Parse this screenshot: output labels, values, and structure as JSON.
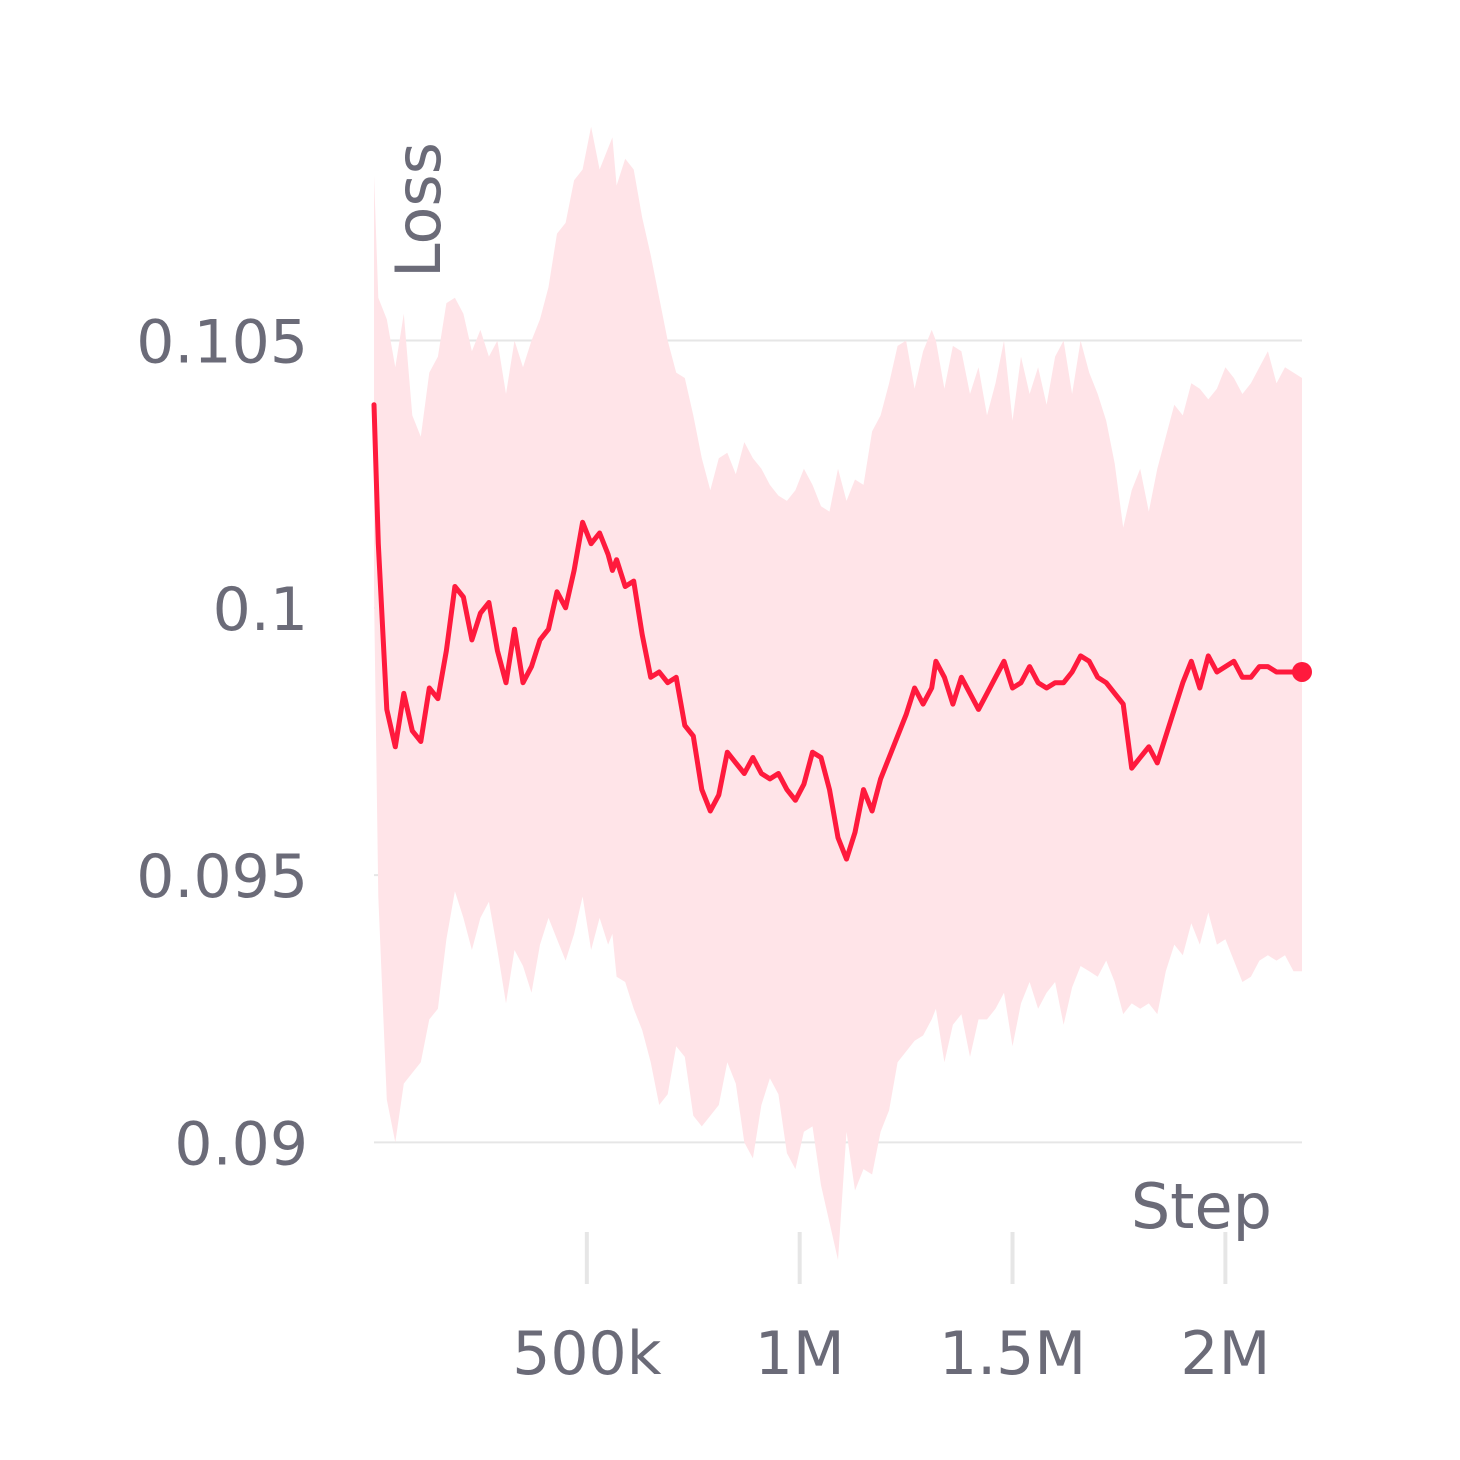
{
  "chart_data": {
    "type": "line",
    "xlabel": "Step",
    "ylabel": "Loss",
    "x_ticks": [
      {
        "value": 500000,
        "label": "500k"
      },
      {
        "value": 1000000,
        "label": "1M"
      },
      {
        "value": 1500000,
        "label": "1.5M"
      },
      {
        "value": 2000000,
        "label": "2M"
      }
    ],
    "y_ticks": [
      {
        "value": 0.09,
        "label": "0.09"
      },
      {
        "value": 0.095,
        "label": "0.095"
      },
      {
        "value": 0.1,
        "label": "0.1"
      },
      {
        "value": 0.105,
        "label": "0.105"
      }
    ],
    "xlim": [
      0,
      2180000
    ],
    "ylim": [
      0.0878,
      0.1095
    ],
    "grid": "horizontal",
    "colors": {
      "line": "#ff1a3d",
      "band": "#ffe4e8",
      "grid": "#e6e6e6",
      "text": "#6b6b78"
    },
    "series": [
      {
        "x": [
          0,
          10000,
          30000,
          50000,
          70000,
          90000,
          110000,
          130000,
          150000,
          170000,
          190000,
          210000,
          230000,
          250000,
          270000,
          290000,
          310000,
          330000,
          350000,
          370000,
          390000,
          410000,
          430000,
          450000,
          470000,
          490000,
          510000,
          530000,
          550000,
          560000,
          570000,
          590000,
          610000,
          630000,
          650000,
          670000,
          690000,
          710000,
          730000,
          750000,
          770000,
          790000,
          810000,
          830000,
          850000,
          870000,
          890000,
          910000,
          930000,
          950000,
          970000,
          990000,
          1010000,
          1030000,
          1050000,
          1070000,
          1090000,
          1110000,
          1130000,
          1150000,
          1170000,
          1190000,
          1210000,
          1230000,
          1250000,
          1270000,
          1290000,
          1310000,
          1320000,
          1340000,
          1360000,
          1380000,
          1400000,
          1420000,
          1440000,
          1460000,
          1480000,
          1500000,
          1520000,
          1540000,
          1560000,
          1580000,
          1600000,
          1620000,
          1640000,
          1660000,
          1680000,
          1700000,
          1720000,
          1740000,
          1760000,
          1780000,
          1800000,
          1820000,
          1840000,
          1860000,
          1880000,
          1900000,
          1920000,
          1940000,
          1960000,
          1980000,
          2000000,
          2020000,
          2040000,
          2060000,
          2080000,
          2100000,
          2120000,
          2140000,
          2160000,
          2180000
        ],
        "y": [
          0.1038,
          0.1012,
          0.0981,
          0.0974,
          0.0984,
          0.0977,
          0.0975,
          0.0985,
          0.0983,
          0.0992,
          0.1004,
          0.1002,
          0.0994,
          0.0999,
          0.1001,
          0.0992,
          0.0986,
          0.0996,
          0.0986,
          0.0989,
          0.0994,
          0.0996,
          0.1003,
          0.1,
          0.1007,
          0.1016,
          0.1012,
          0.1014,
          0.101,
          0.1007,
          0.1009,
          0.1004,
          0.1005,
          0.0995,
          0.0987,
          0.0988,
          0.0986,
          0.0987,
          0.0978,
          0.0976,
          0.0966,
          0.0962,
          0.0965,
          0.0973,
          0.0971,
          0.0969,
          0.0972,
          0.0969,
          0.0968,
          0.0969,
          0.0966,
          0.0964,
          0.0967,
          0.0973,
          0.0972,
          0.0966,
          0.0957,
          0.0953,
          0.0958,
          0.0966,
          0.0962,
          0.0968,
          0.0972,
          0.0976,
          0.098,
          0.0985,
          0.0982,
          0.0985,
          0.099,
          0.0987,
          0.0982,
          0.0987,
          0.0984,
          0.0981,
          0.0984,
          0.0987,
          0.099,
          0.0985,
          0.0986,
          0.0989,
          0.0986,
          0.0985,
          0.0986,
          0.0986,
          0.0988,
          0.0991,
          0.099,
          0.0987,
          0.0986,
          0.0984,
          0.0982,
          0.097,
          0.0972,
          0.0974,
          0.0971,
          0.0976,
          0.0981,
          0.0986,
          0.099,
          0.0985,
          0.0991,
          0.0988,
          0.0989,
          0.099,
          0.0987,
          0.0987,
          0.0989,
          0.0989,
          0.0988,
          0.0988,
          0.0988,
          0.0988
        ],
        "upper": [
          0.1081,
          0.1058,
          0.1054,
          0.1045,
          0.1055,
          0.1036,
          0.1032,
          0.1044,
          0.1047,
          0.1057,
          0.1058,
          0.1055,
          0.1048,
          0.1052,
          0.1047,
          0.105,
          0.104,
          0.105,
          0.1045,
          0.105,
          0.1054,
          0.106,
          0.107,
          0.1072,
          0.108,
          0.1082,
          0.109,
          0.1082,
          0.1086,
          0.1088,
          0.1079,
          0.1084,
          0.1082,
          0.1073,
          0.1066,
          0.1058,
          0.105,
          0.1044,
          0.1043,
          0.1036,
          0.1028,
          0.1022,
          0.1028,
          0.1029,
          0.1025,
          0.1031,
          0.1028,
          0.1026,
          0.1023,
          0.1021,
          0.102,
          0.1022,
          0.1026,
          0.1023,
          0.1019,
          0.1018,
          0.1026,
          0.102,
          0.1024,
          0.1023,
          0.1033,
          0.1036,
          0.1042,
          0.1049,
          0.105,
          0.1041,
          0.1048,
          0.1052,
          0.105,
          0.1041,
          0.1049,
          0.1048,
          0.104,
          0.1045,
          0.1036,
          0.1042,
          0.105,
          0.1035,
          0.1047,
          0.104,
          0.1045,
          0.1038,
          0.1047,
          0.105,
          0.104,
          0.105,
          0.1044,
          0.104,
          0.1035,
          0.1027,
          0.1015,
          0.1022,
          0.1026,
          0.1018,
          0.1026,
          0.1032,
          0.1038,
          0.1036,
          0.1042,
          0.1041,
          0.1039,
          0.1041,
          0.1045,
          0.1043,
          0.104,
          0.1042,
          0.1045,
          0.1048,
          0.1042,
          0.1045,
          0.1044,
          0.1043
        ],
        "lower": [
          0.1003,
          0.0946,
          0.0908,
          0.09,
          0.0911,
          0.0913,
          0.0915,
          0.0923,
          0.0925,
          0.0938,
          0.0947,
          0.0942,
          0.0936,
          0.0942,
          0.0945,
          0.0936,
          0.0926,
          0.0936,
          0.0933,
          0.0928,
          0.0937,
          0.0942,
          0.0938,
          0.0934,
          0.0939,
          0.0946,
          0.0936,
          0.0942,
          0.0937,
          0.0939,
          0.0931,
          0.093,
          0.0925,
          0.0921,
          0.0915,
          0.0907,
          0.0909,
          0.0918,
          0.0916,
          0.0905,
          0.0903,
          0.0905,
          0.0907,
          0.0915,
          0.0911,
          0.09,
          0.0897,
          0.0907,
          0.0912,
          0.0909,
          0.0898,
          0.0895,
          0.0902,
          0.0903,
          0.0892,
          0.0885,
          0.0878,
          0.0902,
          0.0891,
          0.0895,
          0.0894,
          0.0902,
          0.0906,
          0.0915,
          0.0917,
          0.0919,
          0.092,
          0.0923,
          0.0925,
          0.0915,
          0.0922,
          0.0924,
          0.0916,
          0.0923,
          0.0923,
          0.0925,
          0.0928,
          0.0918,
          0.0926,
          0.093,
          0.0925,
          0.0928,
          0.093,
          0.0922,
          0.0929,
          0.0933,
          0.0932,
          0.0931,
          0.0934,
          0.093,
          0.0924,
          0.0926,
          0.0925,
          0.0926,
          0.0924,
          0.0932,
          0.0937,
          0.0935,
          0.0941,
          0.0937,
          0.0943,
          0.0937,
          0.0938,
          0.0934,
          0.093,
          0.0931,
          0.0934,
          0.0935,
          0.0934,
          0.0935,
          0.0932,
          0.0932
        ]
      }
    ]
  }
}
